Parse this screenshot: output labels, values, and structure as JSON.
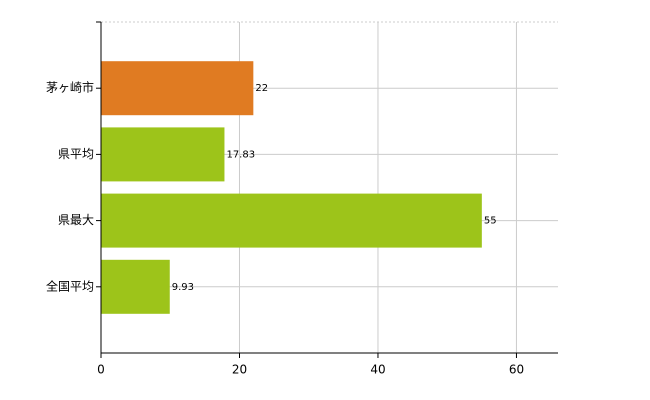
{
  "chart_data": {
    "type": "bar",
    "orientation": "horizontal",
    "categories": [
      "茅ヶ崎市",
      "県平均",
      "県最大",
      "全国平均"
    ],
    "values": [
      22,
      17.83,
      55,
      9.93
    ],
    "colors": [
      "#e07b22",
      "#9dc41a",
      "#9dc41a",
      "#9dc41a"
    ],
    "xlim": [
      0,
      66
    ],
    "xticks": [
      0,
      20,
      40,
      60
    ],
    "grid": true
  }
}
